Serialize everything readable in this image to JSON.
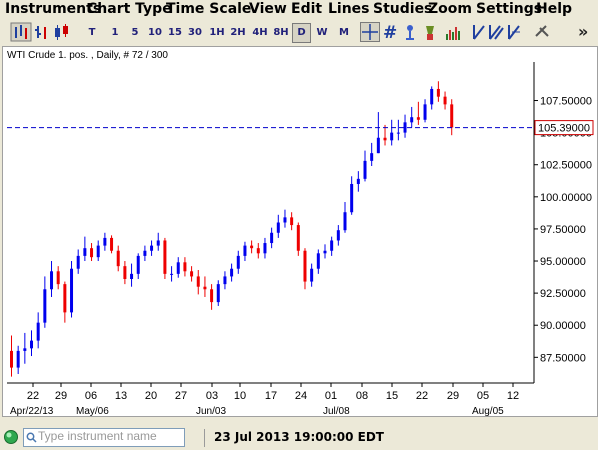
{
  "menu": [
    "Instruments",
    "Chart Type",
    "Time Scale",
    "View",
    "Edit",
    "Lines",
    "Studies",
    "Zoom",
    "Settings",
    "Help"
  ],
  "toolbar": {
    "timeframes": [
      "T",
      "1",
      "5",
      "10",
      "15",
      "30",
      "1H",
      "2H",
      "4H",
      "8H",
      "D",
      "W",
      "M"
    ],
    "active_timeframe": "D",
    "more_glyph": "»"
  },
  "chart": {
    "title": "WTI Crude 1. pos. , Daily, # 72 / 300",
    "current_price": "105.39000",
    "line_color": "#0000cc",
    "up_color": "#0000ee",
    "down_color": "#ee0000",
    "y_tick_labels": [
      "107.50000",
      "105.00000",
      "102.50000",
      "100.00000",
      "97.50000",
      "95.00000",
      "92.50000",
      "90.00000",
      "87.50000"
    ],
    "x_tick_labels": [
      "22",
      "29",
      "06",
      "13",
      "20",
      "27",
      "03",
      "10",
      "17",
      "24",
      "01",
      "08",
      "15",
      "22",
      "29",
      "05",
      "12"
    ],
    "month_labels": [
      "Apr/22/13",
      "May/06",
      "Jun/03",
      "Jul/08",
      "Aug/05"
    ]
  },
  "chart_data": {
    "type": "candlestick",
    "ylim": [
      85.5,
      110.5
    ],
    "yticks": [
      107.5,
      105.0,
      102.5,
      100.0,
      97.5,
      95.0,
      92.5,
      90.0,
      87.5
    ],
    "current_price": 105.39,
    "dates": [
      "04/19",
      "04/22",
      "04/23",
      "04/24",
      "04/25",
      "04/26",
      "04/29",
      "04/30",
      "05/01",
      "05/02",
      "05/03",
      "05/06",
      "05/07",
      "05/08",
      "05/09",
      "05/10",
      "05/13",
      "05/14",
      "05/15",
      "05/16",
      "05/17",
      "05/20",
      "05/21",
      "05/22",
      "05/23",
      "05/24",
      "05/28",
      "05/29",
      "05/30",
      "05/31",
      "06/03",
      "06/04",
      "06/05",
      "06/06",
      "06/07",
      "06/10",
      "06/11",
      "06/12",
      "06/13",
      "06/14",
      "06/17",
      "06/18",
      "06/19",
      "06/20",
      "06/21",
      "06/24",
      "06/25",
      "06/26",
      "06/27",
      "06/28",
      "07/01",
      "07/02",
      "07/03",
      "07/05",
      "07/08",
      "07/09",
      "07/10",
      "07/11",
      "07/12",
      "07/15",
      "07/16",
      "07/17",
      "07/18",
      "07/19",
      "07/22",
      "07/23",
      "07/24"
    ],
    "open": [
      88.0,
      86.7,
      88.0,
      88.2,
      88.8,
      90.2,
      92.8,
      94.2,
      93.2,
      91.0,
      94.4,
      95.4,
      96.0,
      95.3,
      96.2,
      96.8,
      95.8,
      94.6,
      93.6,
      94.0,
      95.4,
      95.8,
      96.2,
      96.6,
      94.0,
      94.0,
      94.9,
      94.2,
      93.8,
      93.0,
      92.8,
      91.8,
      93.2,
      93.8,
      94.4,
      95.4,
      96.2,
      96.0,
      95.6,
      96.4,
      97.2,
      98.0,
      98.4,
      97.8,
      95.8,
      93.4,
      94.4,
      95.6,
      95.8,
      96.6,
      97.4,
      98.8,
      101.0,
      101.4,
      102.8,
      103.4,
      104.6,
      104.4,
      105.0,
      105.0,
      105.8,
      106.2,
      106.0,
      107.2,
      108.4,
      107.8,
      107.2
    ],
    "close": [
      86.7,
      88.0,
      88.2,
      88.8,
      90.2,
      92.8,
      94.2,
      93.2,
      91.0,
      94.4,
      95.4,
      96.0,
      95.3,
      96.2,
      96.8,
      95.8,
      94.6,
      93.6,
      94.0,
      95.4,
      95.8,
      96.2,
      96.6,
      94.0,
      94.0,
      94.9,
      94.2,
      93.8,
      93.0,
      92.8,
      91.8,
      93.2,
      93.8,
      94.4,
      95.4,
      96.2,
      96.0,
      95.6,
      96.4,
      97.2,
      98.0,
      98.4,
      97.8,
      95.8,
      93.4,
      94.4,
      95.6,
      95.8,
      96.6,
      97.4,
      98.8,
      101.0,
      101.4,
      102.8,
      103.4,
      104.6,
      104.4,
      105.0,
      105.0,
      105.8,
      106.2,
      106.0,
      107.2,
      108.4,
      107.8,
      107.2,
      105.4
    ],
    "high": [
      89.2,
      88.4,
      89.4,
      89.6,
      91.0,
      93.8,
      95.0,
      94.6,
      93.4,
      95.0,
      95.9,
      96.9,
      96.4,
      96.6,
      97.2,
      97.0,
      96.2,
      95.0,
      94.8,
      95.6,
      96.2,
      96.6,
      97.2,
      96.8,
      94.6,
      95.3,
      95.3,
      94.6,
      94.3,
      93.8,
      93.2,
      93.5,
      94.2,
      94.8,
      95.8,
      96.5,
      96.6,
      96.4,
      96.8,
      97.6,
      98.6,
      99.0,
      98.8,
      98.0,
      96.0,
      94.8,
      95.9,
      96.3,
      96.9,
      97.8,
      99.6,
      101.6,
      102.0,
      103.6,
      104.2,
      106.6,
      105.6,
      106.0,
      106.0,
      106.4,
      107.0,
      107.4,
      107.6,
      108.6,
      109.0,
      108.2,
      107.6
    ],
    "low": [
      86.0,
      86.2,
      87.0,
      87.6,
      88.2,
      89.8,
      92.2,
      92.8,
      90.2,
      90.6,
      94.0,
      95.0,
      95.0,
      95.0,
      95.8,
      95.6,
      94.2,
      93.2,
      93.0,
      93.6,
      95.0,
      95.4,
      95.8,
      93.6,
      93.4,
      93.7,
      93.8,
      93.4,
      92.4,
      92.2,
      91.2,
      91.5,
      92.8,
      93.4,
      94.0,
      95.0,
      95.6,
      95.2,
      95.2,
      96.0,
      96.8,
      97.6,
      97.4,
      95.4,
      92.8,
      93.0,
      94.0,
      95.2,
      95.4,
      96.2,
      97.2,
      98.6,
      100.4,
      101.2,
      102.4,
      103.4,
      104.0,
      104.0,
      104.4,
      104.6,
      105.4,
      105.6,
      105.8,
      106.8,
      107.4,
      106.8,
      104.8
    ]
  }
}
